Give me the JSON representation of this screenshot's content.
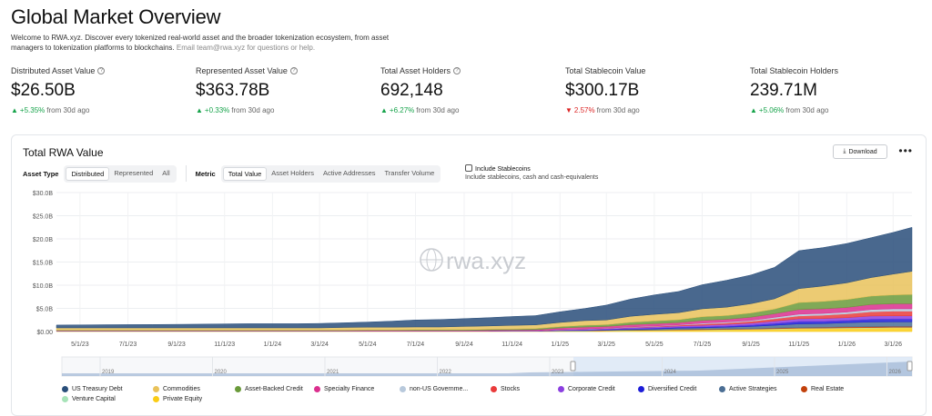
{
  "page": {
    "title": "Global Market Overview",
    "intro": "Welcome to RWA.xyz. Discover every tokenized real-world asset and the broader tokenization ecosystem, from asset managers to tokenization platforms to blockchains.",
    "intro_email": "Email team@rwa.xyz for questions or help."
  },
  "metrics": [
    {
      "label": "Distributed Asset Value",
      "value": "$26.50B",
      "change": "+5.35%",
      "direction": "up",
      "period": "from 30d ago",
      "info": true
    },
    {
      "label": "Represented Asset Value",
      "value": "$363.78B",
      "change": "+0.33%",
      "direction": "up",
      "period": "from 30d ago",
      "info": true
    },
    {
      "label": "Total Asset Holders",
      "value": "692,148",
      "change": "+6.27%",
      "direction": "up",
      "period": "from 30d ago",
      "info": true
    },
    {
      "label": "Total Stablecoin Value",
      "value": "$300.17B",
      "change": "2.57%",
      "direction": "down",
      "period": "from 30d ago",
      "info": false
    },
    {
      "label": "Total Stablecoin Holders",
      "value": "239.71M",
      "change": "+5.06%",
      "direction": "up",
      "period": "from 30d ago",
      "info": false
    }
  ],
  "card": {
    "title": "Total RWA Value",
    "download_label": "Download",
    "more_label": "•••",
    "asset_type_label": "Asset Type",
    "asset_type_options": [
      "Distributed",
      "Represented",
      "All"
    ],
    "asset_type_selected": 0,
    "metric_label": "Metric",
    "metric_options": [
      "Total Value",
      "Asset Holders",
      "Active Addresses",
      "Transfer Volume"
    ],
    "metric_selected": 0,
    "stablecoin_label": "Include Stablecoins",
    "stablecoin_sub": "Include stablecoins, cash and cash-equivalents",
    "watermark": "rwa.xyz"
  },
  "navigator": {
    "years": [
      "2019",
      "2020",
      "2021",
      "2022",
      "2023",
      "2024",
      "2025",
      "2026"
    ]
  },
  "chart_data": {
    "type": "area",
    "stacked": true,
    "title": "Total RWA Value",
    "x_ticks": [
      "5/1/23",
      "7/1/23",
      "9/1/23",
      "11/1/23",
      "1/1/24",
      "3/1/24",
      "5/1/24",
      "7/1/24",
      "9/1/24",
      "11/1/24",
      "1/1/25",
      "3/1/25",
      "5/1/25",
      "7/1/25",
      "9/1/25",
      "11/1/25",
      "1/1/26",
      "3/1/26"
    ],
    "y_ticks": [
      "$0.00",
      "$5.0B",
      "$10.0B",
      "$15.0B",
      "$20.0B",
      "$25.0B",
      "$30.0B"
    ],
    "ylim": [
      0,
      30
    ],
    "y_unit": "B USD",
    "grid": true,
    "x": [
      "4/1/23",
      "5/1/23",
      "6/1/23",
      "7/1/23",
      "8/1/23",
      "9/1/23",
      "10/1/23",
      "11/1/23",
      "12/1/23",
      "1/1/24",
      "2/1/24",
      "3/1/24",
      "4/1/24",
      "5/1/24",
      "6/1/24",
      "7/1/24",
      "8/1/24",
      "9/1/24",
      "10/1/24",
      "11/1/24",
      "12/1/24",
      "1/1/25",
      "2/1/25",
      "3/1/25",
      "4/1/25",
      "5/1/25",
      "6/1/25",
      "7/1/25",
      "8/1/25",
      "9/1/25",
      "10/1/25",
      "11/1/25",
      "12/1/25",
      "1/1/26",
      "2/1/26",
      "3/1/26",
      "3/25/26"
    ],
    "series": [
      {
        "name": "Private Equity",
        "color": "#facc15",
        "values": [
          0.05,
          0.05,
          0.05,
          0.05,
          0.05,
          0.05,
          0.05,
          0.05,
          0.05,
          0.05,
          0.05,
          0.05,
          0.05,
          0.05,
          0.05,
          0.05,
          0.05,
          0.05,
          0.05,
          0.05,
          0.05,
          0.1,
          0.1,
          0.15,
          0.2,
          0.25,
          0.3,
          0.35,
          0.4,
          0.45,
          0.5,
          0.6,
          0.65,
          0.7,
          0.75,
          0.8,
          0.8
        ]
      },
      {
        "name": "Venture Capital",
        "color": "#a7e3b8",
        "values": [
          0.02,
          0.02,
          0.02,
          0.02,
          0.02,
          0.02,
          0.02,
          0.02,
          0.02,
          0.02,
          0.02,
          0.02,
          0.02,
          0.02,
          0.02,
          0.02,
          0.02,
          0.02,
          0.02,
          0.02,
          0.02,
          0.03,
          0.03,
          0.05,
          0.05,
          0.05,
          0.05,
          0.05,
          0.05,
          0.05,
          0.1,
          0.1,
          0.1,
          0.1,
          0.1,
          0.1,
          0.1
        ]
      },
      {
        "name": "Real Estate",
        "color": "#c2410c",
        "values": [
          0.02,
          0.02,
          0.02,
          0.02,
          0.02,
          0.02,
          0.02,
          0.02,
          0.02,
          0.02,
          0.02,
          0.02,
          0.02,
          0.02,
          0.02,
          0.02,
          0.02,
          0.02,
          0.02,
          0.02,
          0.02,
          0.03,
          0.03,
          0.05,
          0.05,
          0.05,
          0.1,
          0.1,
          0.1,
          0.1,
          0.15,
          0.15,
          0.15,
          0.2,
          0.2,
          0.2,
          0.2
        ]
      },
      {
        "name": "Active Strategies",
        "color": "#4b6e94",
        "values": [
          0.0,
          0.0,
          0.0,
          0.0,
          0.0,
          0.0,
          0.0,
          0.0,
          0.0,
          0.0,
          0.0,
          0.0,
          0.0,
          0.0,
          0.0,
          0.0,
          0.0,
          0.0,
          0.0,
          0.0,
          0.0,
          0.05,
          0.1,
          0.1,
          0.2,
          0.2,
          0.3,
          0.3,
          0.4,
          0.5,
          0.6,
          0.8,
          0.8,
          0.9,
          1.0,
          1.0,
          1.0
        ]
      },
      {
        "name": "Diversified Credit",
        "color": "#1d1dd8",
        "values": [
          0.0,
          0.0,
          0.0,
          0.0,
          0.0,
          0.0,
          0.0,
          0.0,
          0.0,
          0.0,
          0.0,
          0.0,
          0.0,
          0.0,
          0.0,
          0.0,
          0.0,
          0.0,
          0.0,
          0.0,
          0.0,
          0.05,
          0.05,
          0.1,
          0.1,
          0.15,
          0.15,
          0.2,
          0.2,
          0.3,
          0.4,
          0.5,
          0.5,
          0.5,
          0.6,
          0.6,
          0.6
        ]
      },
      {
        "name": "Corporate Credit",
        "color": "#8b3fe0",
        "values": [
          0.05,
          0.05,
          0.05,
          0.05,
          0.05,
          0.05,
          0.05,
          0.05,
          0.05,
          0.05,
          0.05,
          0.05,
          0.05,
          0.05,
          0.05,
          0.05,
          0.05,
          0.05,
          0.05,
          0.1,
          0.1,
          0.15,
          0.2,
          0.2,
          0.25,
          0.3,
          0.3,
          0.35,
          0.4,
          0.4,
          0.5,
          0.6,
          0.6,
          0.6,
          0.7,
          0.7,
          0.7
        ]
      },
      {
        "name": "Stocks",
        "color": "#ea3b3b",
        "values": [
          0.0,
          0.0,
          0.0,
          0.0,
          0.0,
          0.0,
          0.0,
          0.0,
          0.0,
          0.0,
          0.0,
          0.0,
          0.0,
          0.0,
          0.0,
          0.0,
          0.0,
          0.0,
          0.0,
          0.0,
          0.0,
          0.0,
          0.0,
          0.0,
          0.05,
          0.1,
          0.15,
          0.25,
          0.3,
          0.4,
          0.5,
          0.6,
          0.7,
          0.8,
          0.9,
          1.0,
          1.0
        ]
      },
      {
        "name": "non-US Government Debt",
        "color": "#b8c9dc",
        "values": [
          0.0,
          0.0,
          0.0,
          0.0,
          0.0,
          0.0,
          0.0,
          0.0,
          0.0,
          0.0,
          0.0,
          0.0,
          0.0,
          0.0,
          0.0,
          0.0,
          0.0,
          0.0,
          0.0,
          0.0,
          0.0,
          0.05,
          0.05,
          0.05,
          0.1,
          0.1,
          0.1,
          0.2,
          0.2,
          0.2,
          0.3,
          0.4,
          0.4,
          0.4,
          0.5,
          0.5,
          0.5
        ]
      },
      {
        "name": "Specialty Finance",
        "color": "#db2f8e",
        "values": [
          0.05,
          0.05,
          0.05,
          0.05,
          0.05,
          0.05,
          0.05,
          0.05,
          0.05,
          0.05,
          0.05,
          0.05,
          0.05,
          0.1,
          0.1,
          0.1,
          0.1,
          0.1,
          0.15,
          0.15,
          0.2,
          0.3,
          0.4,
          0.4,
          0.5,
          0.5,
          0.5,
          0.6,
          0.6,
          0.7,
          0.8,
          1.0,
          1.0,
          1.0,
          1.1,
          1.1,
          1.1
        ]
      },
      {
        "name": "Asset-Backed Credit",
        "color": "#6a9a3a",
        "values": [
          0.1,
          0.1,
          0.1,
          0.1,
          0.1,
          0.1,
          0.1,
          0.1,
          0.1,
          0.1,
          0.1,
          0.1,
          0.1,
          0.1,
          0.1,
          0.15,
          0.15,
          0.15,
          0.2,
          0.2,
          0.25,
          0.3,
          0.4,
          0.4,
          0.5,
          0.6,
          0.6,
          0.8,
          0.8,
          0.9,
          1.0,
          1.5,
          1.6,
          1.7,
          1.8,
          1.9,
          2.0
        ]
      },
      {
        "name": "Commodities",
        "color": "#e9c25a",
        "values": [
          0.5,
          0.5,
          0.5,
          0.5,
          0.5,
          0.5,
          0.5,
          0.5,
          0.5,
          0.5,
          0.5,
          0.5,
          0.6,
          0.6,
          0.6,
          0.6,
          0.6,
          0.7,
          0.7,
          0.8,
          0.8,
          0.9,
          1.0,
          1.0,
          1.3,
          1.4,
          1.5,
          1.7,
          1.8,
          2.0,
          2.2,
          3.0,
          3.3,
          3.6,
          4.0,
          4.5,
          5.0
        ]
      },
      {
        "name": "US Treasury Debt",
        "color": "#294e7a",
        "values": [
          0.6,
          0.65,
          0.68,
          0.7,
          0.72,
          0.75,
          0.8,
          0.85,
          0.9,
          0.9,
          0.9,
          0.95,
          1.0,
          1.1,
          1.3,
          1.5,
          1.6,
          1.7,
          1.8,
          1.9,
          2.0,
          2.3,
          2.6,
          3.2,
          3.7,
          4.2,
          4.6,
          5.2,
          5.8,
          6.2,
          6.8,
          8.2,
          8.3,
          8.5,
          8.6,
          9.0,
          9.5
        ]
      }
    ]
  },
  "legend": [
    {
      "name": "US Treasury Debt",
      "color": "#294e7a"
    },
    {
      "name": "Commodities",
      "color": "#e9c25a"
    },
    {
      "name": "Asset-Backed Credit",
      "color": "#6a9a3a"
    },
    {
      "name": "Specialty Finance",
      "color": "#db2f8e"
    },
    {
      "name": "non-US Governme...",
      "color": "#b8c9dc"
    },
    {
      "name": "Stocks",
      "color": "#ea3b3b"
    },
    {
      "name": "Corporate Credit",
      "color": "#8b3fe0"
    },
    {
      "name": "Diversified Credit",
      "color": "#1d1dd8"
    },
    {
      "name": "Active Strategies",
      "color": "#4b6e94"
    },
    {
      "name": "Real Estate",
      "color": "#c2410c"
    },
    {
      "name": "Venture Capital",
      "color": "#a7e3b8"
    },
    {
      "name": "Private Equity",
      "color": "#facc15"
    }
  ]
}
